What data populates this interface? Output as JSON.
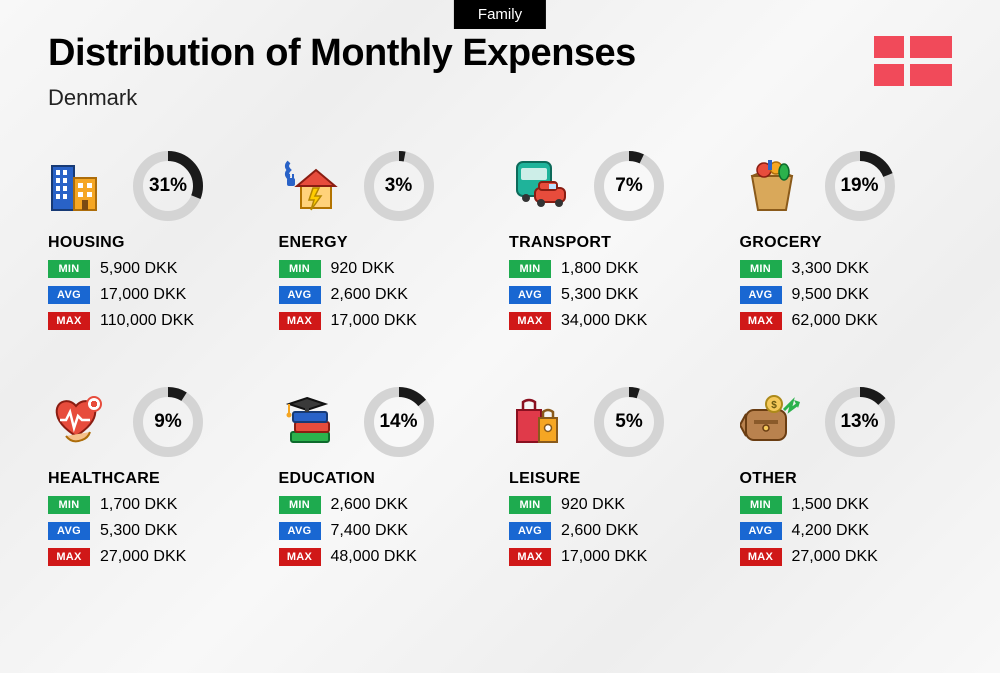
{
  "tag": "Family",
  "title": "Distribution of Monthly Expenses",
  "country": "Denmark",
  "flag_color": "#f14a5a",
  "currency": "DKK",
  "donut": {
    "radius": 30,
    "stroke_width": 10,
    "track_color": "#d4d4d4",
    "fill_color": "#1a1a1a"
  },
  "badges": {
    "min": {
      "label": "MIN",
      "bg": "#1eab4f"
    },
    "avg": {
      "label": "AVG",
      "bg": "#1967d2"
    },
    "max": {
      "label": "MAX",
      "bg": "#d01818"
    }
  },
  "categories": [
    {
      "name": "HOUSING",
      "pct": 31,
      "min": "5,900 DKK",
      "avg": "17,000 DKK",
      "max": "110,000 DKK",
      "icon": "housing"
    },
    {
      "name": "ENERGY",
      "pct": 3,
      "min": "920 DKK",
      "avg": "2,600 DKK",
      "max": "17,000 DKK",
      "icon": "energy"
    },
    {
      "name": "TRANSPORT",
      "pct": 7,
      "min": "1,800 DKK",
      "avg": "5,300 DKK",
      "max": "34,000 DKK",
      "icon": "transport"
    },
    {
      "name": "GROCERY",
      "pct": 19,
      "min": "3,300 DKK",
      "avg": "9,500 DKK",
      "max": "62,000 DKK",
      "icon": "grocery"
    },
    {
      "name": "HEALTHCARE",
      "pct": 9,
      "min": "1,700 DKK",
      "avg": "5,300 DKK",
      "max": "27,000 DKK",
      "icon": "healthcare"
    },
    {
      "name": "EDUCATION",
      "pct": 14,
      "min": "2,600 DKK",
      "avg": "7,400 DKK",
      "max": "48,000 DKK",
      "icon": "education"
    },
    {
      "name": "LEISURE",
      "pct": 5,
      "min": "920 DKK",
      "avg": "2,600 DKK",
      "max": "17,000 DKK",
      "icon": "leisure"
    },
    {
      "name": "OTHER",
      "pct": 13,
      "min": "1,500 DKK",
      "avg": "4,200 DKK",
      "max": "27,000 DKK",
      "icon": "other"
    }
  ]
}
